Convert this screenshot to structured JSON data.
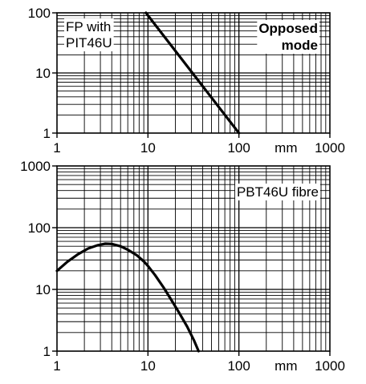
{
  "chart_data": [
    {
      "type": "line",
      "xscale": "log",
      "yscale": "log",
      "xlim": [
        1,
        1000
      ],
      "ylim": [
        1,
        100
      ],
      "x_ticks": [
        "1",
        "10",
        "100",
        "1000"
      ],
      "y_ticks": [
        "1",
        "10",
        "100"
      ],
      "x_unit": "mm",
      "grid": true,
      "annotations": [
        {
          "id": "fibre",
          "lines": [
            "FP with",
            "PIT46U"
          ],
          "bold": false
        },
        {
          "id": "mode",
          "lines": [
            "Opposed",
            "mode"
          ],
          "bold": true
        }
      ],
      "series": [
        {
          "x": [
            9.5,
            100
          ],
          "y": [
            100,
            1
          ]
        }
      ]
    },
    {
      "type": "line",
      "xscale": "log",
      "yscale": "log",
      "xlim": [
        1,
        1000
      ],
      "ylim": [
        1,
        1000
      ],
      "x_ticks": [
        "1",
        "10",
        "100",
        "1000"
      ],
      "y_ticks": [
        "1",
        "10",
        "100",
        "1000"
      ],
      "x_unit": "mm",
      "grid": true,
      "annotations": [
        {
          "id": "fibre",
          "lines": [
            "PBT46U fibre"
          ],
          "bold": false
        }
      ],
      "series": [
        {
          "x": [
            1,
            1.3,
            1.7,
            2.2,
            2.8,
            3.4,
            4,
            5,
            6,
            7.5,
            9,
            10,
            12,
            15,
            18,
            22,
            27,
            32,
            36
          ],
          "y": [
            20,
            28,
            37,
            46,
            52,
            55,
            54.5,
            50,
            44,
            36,
            28.5,
            24,
            17,
            10.5,
            6.8,
            4.2,
            2.5,
            1.5,
            1
          ]
        }
      ]
    }
  ]
}
